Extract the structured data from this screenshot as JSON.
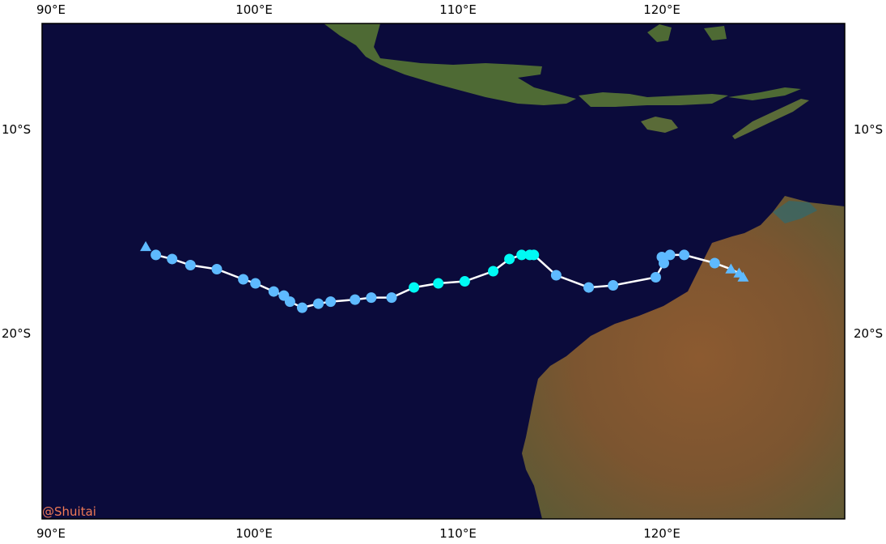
{
  "map": {
    "colors": {
      "ocean": "#0b0b3b",
      "land": "#7a5a34",
      "land_dark": "#4e6a34",
      "shallow": "#1f6f80",
      "track_line": "#ffffff",
      "tropical_depression": "#5ebaff",
      "tropical_storm": "#00faf4"
    },
    "top_ticks": [
      "90°E",
      "100°E",
      "110°E",
      "120°E"
    ],
    "bottom_ticks": [
      "90°E",
      "100°E",
      "110°E",
      "120°E"
    ],
    "left_ticks": [
      "10°S",
      "20°S"
    ],
    "right_ticks": [
      "10°S",
      "20°S"
    ],
    "watermark": "@Shuitai"
  },
  "chart_data": {
    "type": "scatter",
    "description_of_axes": "longitude (°E) vs latitude (°S)",
    "xlim": [
      89.5,
      129
    ],
    "ylim": [
      -28.9,
      -4.5
    ],
    "track": [
      {
        "lon": 95.1,
        "lat": -15.9,
        "cat": "TD",
        "marker": "circle"
      },
      {
        "lon": 95.9,
        "lat": -16.1,
        "cat": "TD",
        "marker": "circle"
      },
      {
        "lon": 96.8,
        "lat": -16.4,
        "cat": "TD",
        "marker": "circle"
      },
      {
        "lon": 98.1,
        "lat": -16.6,
        "cat": "TD",
        "marker": "circle"
      },
      {
        "lon": 99.4,
        "lat": -17.1,
        "cat": "TD",
        "marker": "circle"
      },
      {
        "lon": 100.0,
        "lat": -17.3,
        "cat": "TD",
        "marker": "circle"
      },
      {
        "lon": 100.9,
        "lat": -17.7,
        "cat": "TD",
        "marker": "circle"
      },
      {
        "lon": 101.4,
        "lat": -17.9,
        "cat": "TD",
        "marker": "circle"
      },
      {
        "lon": 101.7,
        "lat": -18.2,
        "cat": "TD",
        "marker": "circle"
      },
      {
        "lon": 102.3,
        "lat": -18.5,
        "cat": "TD",
        "marker": "circle"
      },
      {
        "lon": 103.1,
        "lat": -18.3,
        "cat": "TD",
        "marker": "circle"
      },
      {
        "lon": 103.7,
        "lat": -18.2,
        "cat": "TD",
        "marker": "circle"
      },
      {
        "lon": 104.9,
        "lat": -18.1,
        "cat": "TD",
        "marker": "circle"
      },
      {
        "lon": 105.7,
        "lat": -18.0,
        "cat": "TD",
        "marker": "circle"
      },
      {
        "lon": 106.7,
        "lat": -18.0,
        "cat": "TD",
        "marker": "circle"
      },
      {
        "lon": 107.8,
        "lat": -17.5,
        "cat": "TS",
        "marker": "circle"
      },
      {
        "lon": 109.0,
        "lat": -17.3,
        "cat": "TS",
        "marker": "circle"
      },
      {
        "lon": 110.3,
        "lat": -17.2,
        "cat": "TS",
        "marker": "circle"
      },
      {
        "lon": 111.7,
        "lat": -16.7,
        "cat": "TS",
        "marker": "circle"
      },
      {
        "lon": 112.5,
        "lat": -16.1,
        "cat": "TS",
        "marker": "circle"
      },
      {
        "lon": 113.1,
        "lat": -15.9,
        "cat": "TS",
        "marker": "circle"
      },
      {
        "lon": 113.5,
        "lat": -15.9,
        "cat": "TS",
        "marker": "circle"
      },
      {
        "lon": 113.7,
        "lat": -15.9,
        "cat": "TS",
        "marker": "circle"
      },
      {
        "lon": 114.8,
        "lat": -16.9,
        "cat": "TD",
        "marker": "circle"
      },
      {
        "lon": 116.4,
        "lat": -17.5,
        "cat": "TD",
        "marker": "circle"
      },
      {
        "lon": 117.6,
        "lat": -17.4,
        "cat": "TD",
        "marker": "circle"
      },
      {
        "lon": 119.7,
        "lat": -17.0,
        "cat": "TD",
        "marker": "circle"
      },
      {
        "lon": 120.1,
        "lat": -16.3,
        "cat": "TD",
        "marker": "circle"
      },
      {
        "lon": 120.0,
        "lat": -16.0,
        "cat": "TD",
        "marker": "circle"
      },
      {
        "lon": 120.4,
        "lat": -15.9,
        "cat": "TD",
        "marker": "circle"
      },
      {
        "lon": 121.1,
        "lat": -15.9,
        "cat": "TD",
        "marker": "circle"
      },
      {
        "lon": 122.6,
        "lat": -16.3,
        "cat": "TD",
        "marker": "circle"
      },
      {
        "lon": 123.4,
        "lat": -16.6,
        "cat": "TD",
        "marker": "triangle"
      },
      {
        "lon": 123.8,
        "lat": -16.8,
        "cat": "TD",
        "marker": "triangle"
      },
      {
        "lon": 124.0,
        "lat": -17.0,
        "cat": "TD",
        "marker": "triangle"
      }
    ],
    "extra_points": [
      {
        "lon": 94.6,
        "lat": -15.5,
        "cat": "TD",
        "marker": "triangle"
      }
    ]
  }
}
